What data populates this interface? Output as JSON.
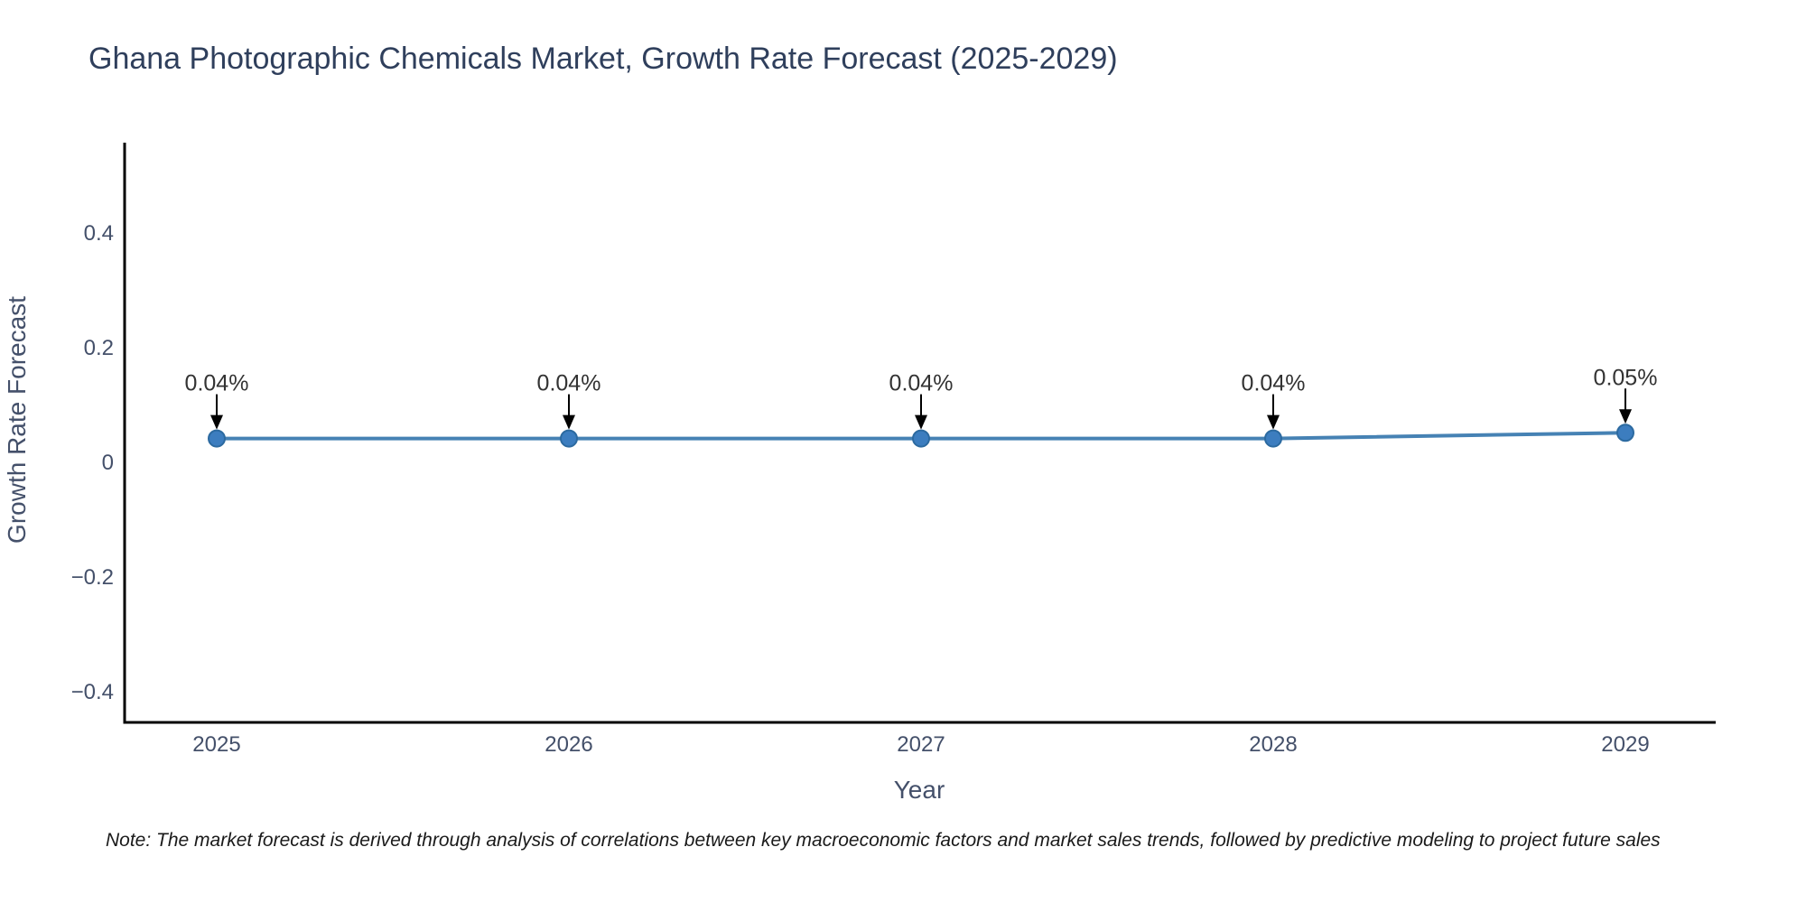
{
  "header": {
    "title": "Ghana Photographic Chemicals Market, Growth Rate Forecast (2025-2029)"
  },
  "chart_data": {
    "type": "line",
    "title": "Ghana Photographic Chemicals Market, Growth Rate Forecast (2025-2029)",
    "x": [
      2025,
      2026,
      2027,
      2028,
      2029
    ],
    "series": [
      {
        "name": "Growth Rate Forecast",
        "values": [
          0.04,
          0.04,
          0.04,
          0.04,
          0.05
        ]
      }
    ],
    "point_labels": [
      "0.04%",
      "0.04%",
      "0.04%",
      "0.04%",
      "0.05%"
    ],
    "xlabel": "Year",
    "ylabel": "Growth Rate Forecast",
    "xticks": [
      2025,
      2026,
      2027,
      2028,
      2029
    ],
    "yticks": [
      0.4,
      0.2,
      0,
      -0.2,
      -0.4
    ],
    "ylim": [
      -0.46,
      0.55
    ],
    "xlim": [
      2024.74,
      2029.26
    ],
    "grid": false,
    "legend_position": "none",
    "annotation_style": "down-arrow",
    "colors": {
      "line": "#4682b4",
      "marker": "#3c7dbf",
      "marker_edge": "#2c6aa0",
      "arrow": "#000000",
      "title_text": "#2f3f5c",
      "tick_text": "#44506a",
      "annotation_text": "#333333",
      "axis": "#000000",
      "background": "#ffffff"
    }
  },
  "footer": {
    "note": "Note: The market forecast is derived through analysis of correlations between key macroeconomic factors and market sales trends, followed by predictive modeling to project future sales"
  }
}
